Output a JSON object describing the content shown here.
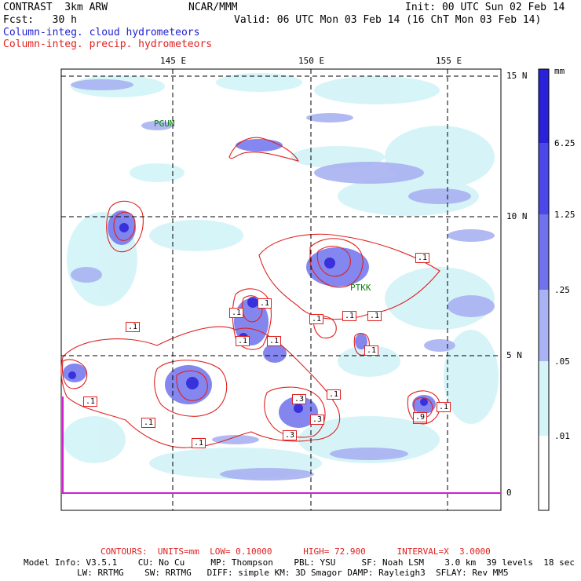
{
  "header": {
    "model": "CONTRAST  3km ARW",
    "org": "NCAR/MMM",
    "init": "Init: 00 UTC Sun 02 Feb 14",
    "fcst": "Fcst:   30 h",
    "valid": "Valid: 06 UTC Mon 03 Feb 14 (16 ChT Mon 03 Feb 14)",
    "field1": "Column-integ. cloud hydrometeors",
    "field2": "Column-integ. precip. hydrometeors"
  },
  "axes": {
    "lon_labels": [
      "145 E",
      "150 E",
      "155 E"
    ],
    "lat_labels": [
      "15 N",
      "10 N",
      "5 N",
      "0"
    ]
  },
  "stations": [
    "PGUM",
    "PTKK"
  ],
  "colorbar": {
    "unit": "mm",
    "labels": [
      "6.25",
      "1.25",
      ".25",
      ".05",
      ".01"
    ],
    "colors": [
      "#2a22d8",
      "#4a48e8",
      "#6f72ec",
      "#a9b2f2",
      "#d4f4f8",
      "#ffffff"
    ]
  },
  "contour_labels": [
    ".1",
    ".1",
    ".1",
    ".1",
    ".1",
    ".1",
    ".1",
    ".3",
    ".3",
    ".1",
    ".3",
    ".1",
    ".1",
    ".1",
    ".9",
    ".1",
    ".9",
    ".1",
    ".1",
    ".1"
  ],
  "footer": {
    "contours": "CONTOURS:  UNITS=mm  LOW= 0.10000      HIGH= 72.900      INTERVAL=X  3.0000",
    "info1": "Model Info: V3.5.1    CU: No Cu     MP: Thompson    PBL: YSU     SF: Noah LSM    3.0 km  39 levels  18 sec",
    "info2": "LW: RRTMG    SW: RRTMG   DIFF: simple KM: 3D Smagor DAMP: Rayleigh3  SFLAY: Rev MM5"
  }
}
